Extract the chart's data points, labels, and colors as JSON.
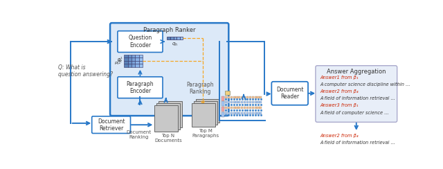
{
  "fig_width": 6.4,
  "fig_height": 2.44,
  "dpi": 100,
  "bg_color": "#ffffff",
  "blue": "#2878c8",
  "orange": "#f5a623",
  "light_blue_fill": "#dce9f8",
  "answer_box_fill": "#e8eef8",
  "answer_box_edge": "#aaaacc",
  "paragraph_ranker_label": "Paragraph Ranker",
  "question_encoder_label": "Question\nEncoder",
  "paragraph_encoder_label": "Paragraph\nEncoder",
  "paragraph_ranking_label": "Paragraph\nRanking",
  "document_reader_label": "Document\nReader",
  "document_retriever_label": "Document\nRetriever",
  "answer_aggregation_label": "Answer Aggregation",
  "q_label": "Q: What is\nquestion answering?",
  "top_n_label": "Top N\nDocuments",
  "top_m_label": "Top M\nParagraphs",
  "doc_ranking_label": "Document\nRanking",
  "answer1_label": "Answer1 from β₁",
  "answer1_text": "A computer science discipline within ...",
  "answer2_label": "Answer2 from β₄",
  "answer2_text": "A field of information retrieval ...",
  "answer3_label": "Answer3 from β₁",
  "answer3_text": "A field of computer science ...",
  "answer2b_label": "Answer2 from β₄",
  "answer2b_text": "A field of information retrieval ..."
}
